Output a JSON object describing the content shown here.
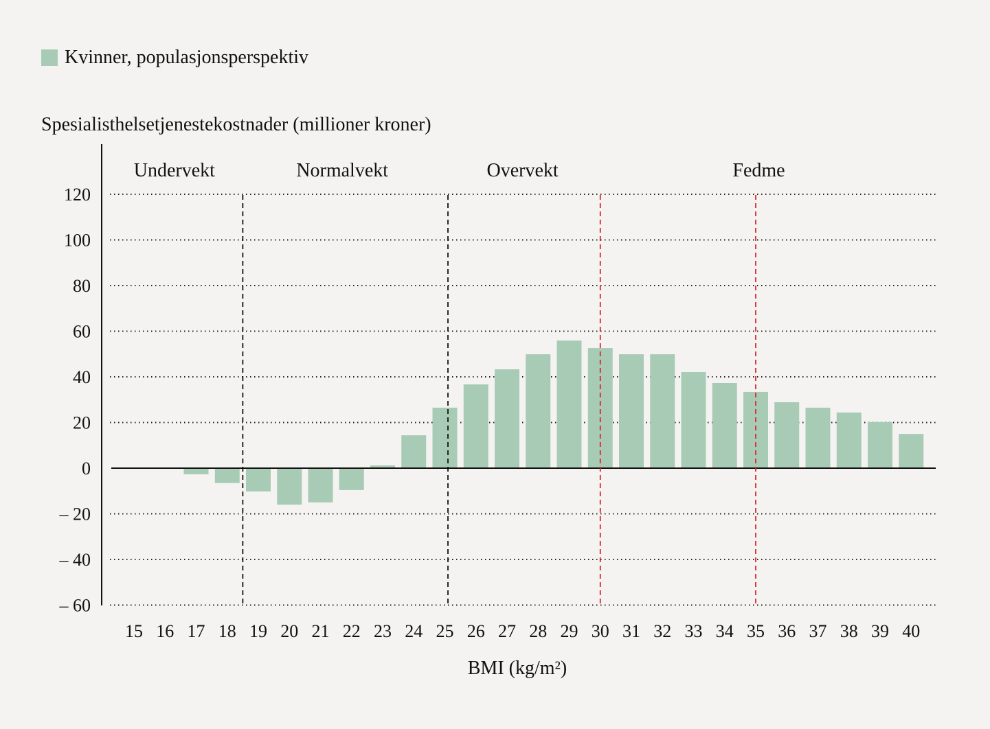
{
  "chart_data": {
    "type": "bar",
    "legend": [
      {
        "label": "Kvinner, populasjonsperspektiv",
        "color": "#a8cbb6"
      }
    ],
    "ylabel": "Spesialisthelsetjenestekostnader (millioner kroner)",
    "xlabel": "BMI (kg/m²)",
    "ylim": [
      -60,
      120
    ],
    "yticks": [
      120,
      100,
      80,
      60,
      40,
      20,
      0,
      -20,
      -40,
      -60
    ],
    "ytick_labels": [
      "120",
      "100",
      "80",
      "60",
      "40",
      "20",
      "0",
      "– 20",
      "– 40",
      "– 60"
    ],
    "grid": "horizontal dotted",
    "categories": [
      "15",
      "16",
      "17",
      "18",
      "19",
      "20",
      "21",
      "22",
      "23",
      "24",
      "25",
      "26",
      "27",
      "28",
      "29",
      "30",
      "31",
      "32",
      "33",
      "34",
      "35",
      "36",
      "37",
      "38",
      "39",
      "40"
    ],
    "series": [
      {
        "name": "Kvinner, populasjonsperspektiv",
        "values": [
          0,
          -0.3,
          -2.7,
          -6.5,
          -10.2,
          -16,
          -15,
          -9.6,
          1.2,
          14.4,
          26.5,
          36.7,
          43.3,
          49.9,
          55.9,
          52.6,
          49.9,
          49.9,
          42.1,
          37.3,
          33.4,
          28.9,
          26.5,
          24.4,
          20.2,
          15.0
        ]
      }
    ],
    "regions": [
      {
        "label": "Undervekt",
        "center_bmi": 16.3
      },
      {
        "label": "Normalvekt",
        "center_bmi": 21.7
      },
      {
        "label": "Overvekt",
        "center_bmi": 27.5
      },
      {
        "label": "Fedme",
        "center_bmi": 35.1
      }
    ],
    "boundaries": [
      {
        "bmi": 18.5,
        "color": "#111111"
      },
      {
        "bmi": 25.1,
        "color": "#111111"
      },
      {
        "bmi": 30,
        "color": "#d42a2a"
      },
      {
        "bmi": 35,
        "color": "#d42a2a"
      }
    ]
  }
}
